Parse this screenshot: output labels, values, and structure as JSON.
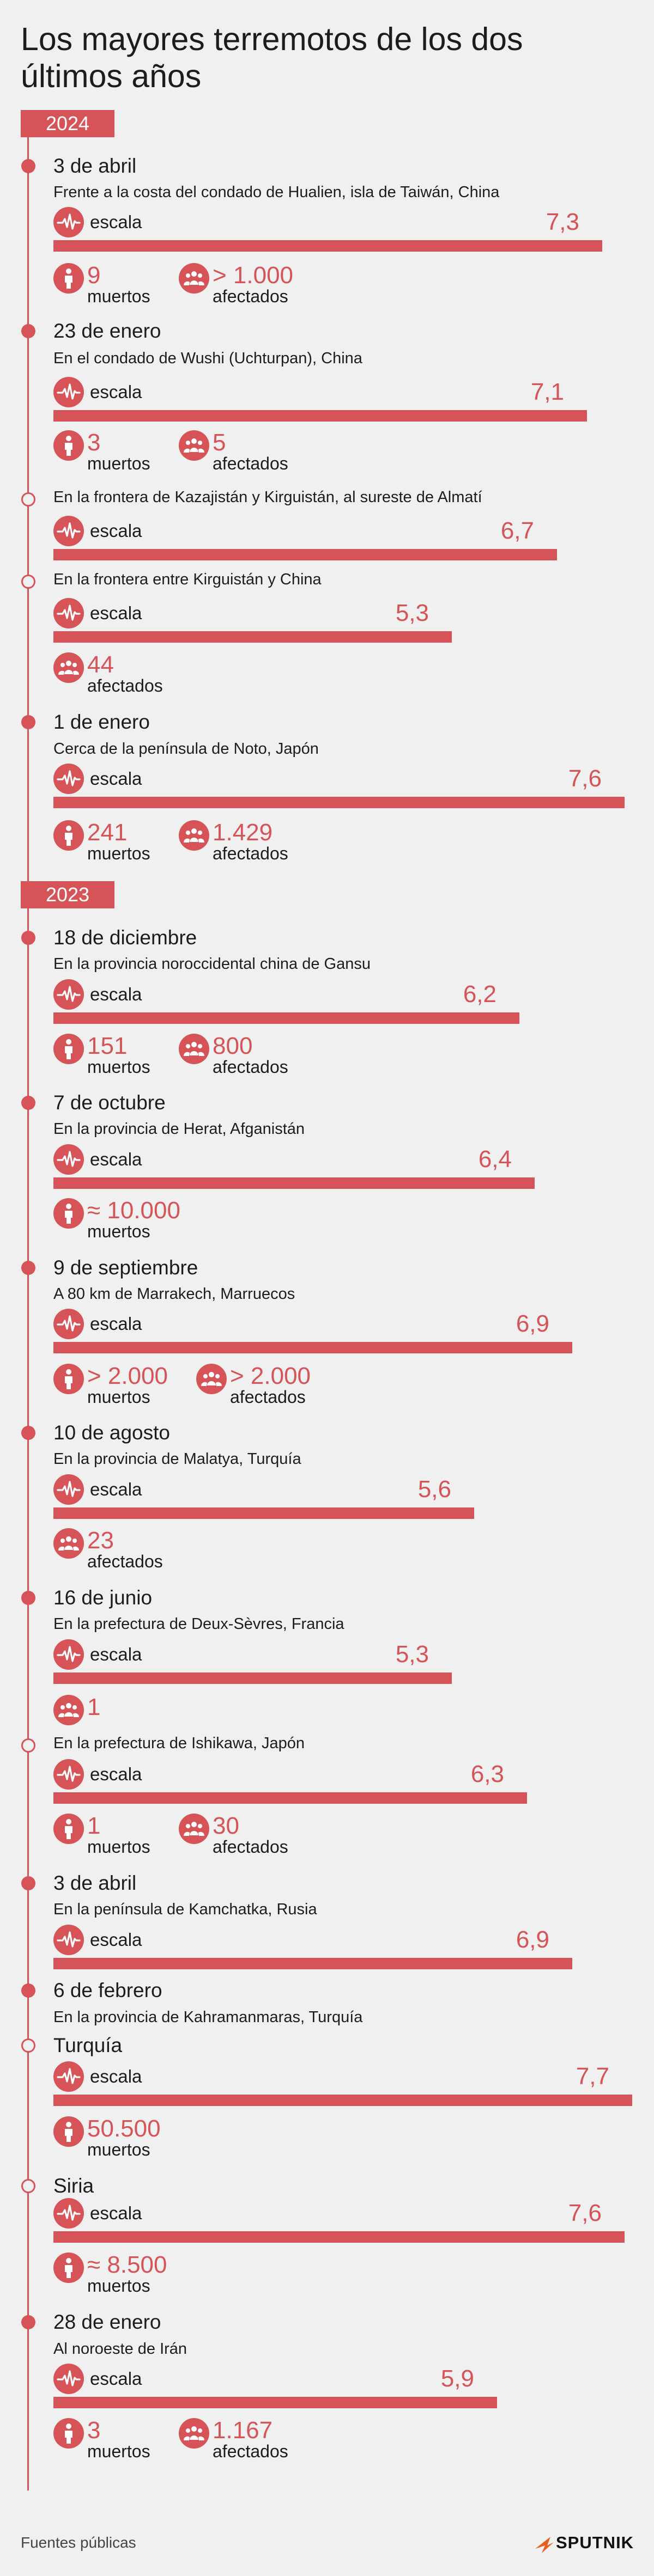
{
  "title": "Los mayores terremotos de los dos últimos años",
  "labels": {
    "escala": "escala",
    "muertos": "muertos",
    "afectados": "afectados"
  },
  "years": [
    "2024",
    "2023"
  ],
  "colors": {
    "accent": "#d65357",
    "background": "#f1f0f0",
    "text": "#1c1c1c"
  },
  "scale_max": 7.7,
  "events": [
    {
      "date": "3 de abril",
      "location": "Frente a la costa del condado de Hualien, isla de Taiwán, China",
      "magnitude": "7,3",
      "value": 7.3,
      "deaths": "9",
      "affected": "> 1.000"
    },
    {
      "date": "23 de enero",
      "location": "En el condado de Wushi (Uchturpan), China",
      "magnitude": "7,1",
      "value": 7.1,
      "deaths": "3",
      "affected": "5"
    },
    {
      "location": "En la frontera de Kazajistán y Kirguistán, al sureste de Almatí",
      "magnitude": "6,7",
      "value": 6.7
    },
    {
      "location": "En la frontera entre Kirguistán y China",
      "magnitude": "5,3",
      "value": 5.3,
      "affected": "44"
    },
    {
      "date": "1 de enero",
      "location": "Cerca de la península de Noto, Japón",
      "magnitude": "7,6",
      "value": 7.6,
      "deaths": "241",
      "affected": "1.429"
    },
    {
      "date": "18 de diciembre",
      "location": "En la provincia noroccidental china de Gansu",
      "magnitude": "6,2",
      "value": 6.2,
      "deaths": "151",
      "affected": "800"
    },
    {
      "date": "7 de octubre",
      "location": "En la provincia de Herat, Afganistán",
      "magnitude": "6,4",
      "value": 6.4,
      "deaths": "≈ 10.000"
    },
    {
      "date": "9 de septiembre",
      "location": "A 80 km de Marrakech, Marruecos",
      "magnitude": "6,9",
      "value": 6.9,
      "deaths": "> 2.000",
      "affected": "> 2.000"
    },
    {
      "date": "10 de agosto",
      "location": "En la provincia de Malatya, Turquía",
      "magnitude": "5,6",
      "value": 5.6,
      "affected": "23"
    },
    {
      "date": "16 de junio",
      "location": "En la prefectura de Deux-Sèvres, Francia",
      "magnitude": "5,3",
      "value": 5.3,
      "affected": "1"
    },
    {
      "location": "En la prefectura de Ishikawa, Japón",
      "magnitude": "6,3",
      "value": 6.3,
      "deaths": "1",
      "affected": "30"
    },
    {
      "date": "3 de abril",
      "location": "En la península de Kamchatka, Rusia",
      "magnitude": "6,9",
      "value": 6.9
    },
    {
      "date": "6 de febrero",
      "location": "En la provincia de Kahramanmaras, Turquía"
    },
    {
      "country": "Turquía",
      "magnitude": "7,7",
      "value": 7.7,
      "deaths": "50.500"
    },
    {
      "country": "Siria",
      "magnitude": "7,6",
      "value": 7.6,
      "deaths": "≈ 8.500"
    },
    {
      "date": "28 de enero",
      "location": "Al noroeste de Irán",
      "magnitude": "5,9",
      "value": 5.9,
      "deaths": "3",
      "affected": "1.167"
    }
  ],
  "footer": {
    "sources": "Fuentes públicas",
    "brand": "SPUTNIK"
  }
}
